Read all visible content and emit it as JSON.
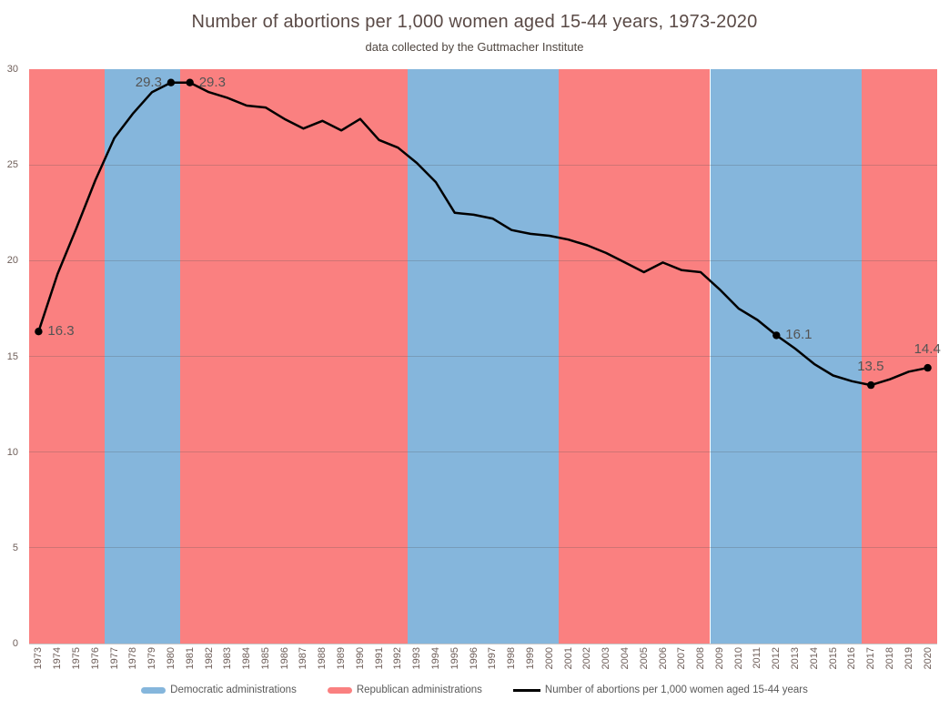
{
  "title": "Number of abortions per 1,000 women aged 15-44 years, 1973-2020",
  "subtitle": "data collected by the Guttmacher Institute",
  "legend": {
    "items": [
      {
        "label": "Democratic administrations",
        "swatch": "democratic"
      },
      {
        "label": "Republican administrations",
        "swatch": "republican"
      },
      {
        "label": "Number of abortions per 1,000 women aged 15-44 years",
        "swatch": "line"
      }
    ]
  },
  "colors": {
    "democratic_band": "#85b6dc",
    "republican_band": "#fa8080",
    "line": "#000000",
    "gridline": "rgba(80,80,80,0.25)",
    "axis_line": "#c6c6c6",
    "title_text": "#5a4a46",
    "subtitle_text": "#504741",
    "tick_text": "#6e5e59",
    "point_label_text": "#545454",
    "legend_text": "#595959"
  },
  "chart_data": {
    "type": "line",
    "title": "Number of abortions per 1,000 women aged 15-44 years, 1973-2020",
    "subtitle": "data collected by the Guttmacher Institute",
    "series_name": "Number of abortions per 1,000 women aged 15-44 years",
    "xlabel": "",
    "ylabel": "",
    "ylim": [
      0,
      30
    ],
    "yticks": [
      0,
      5,
      10,
      15,
      20,
      25,
      30
    ],
    "grid": true,
    "legend_position": "bottom",
    "x": [
      1973,
      1974,
      1975,
      1976,
      1977,
      1978,
      1979,
      1980,
      1981,
      1982,
      1983,
      1984,
      1985,
      1986,
      1987,
      1988,
      1989,
      1990,
      1991,
      1992,
      1993,
      1994,
      1995,
      1996,
      1997,
      1998,
      1999,
      2000,
      2001,
      2002,
      2003,
      2004,
      2005,
      2006,
      2007,
      2008,
      2009,
      2010,
      2011,
      2012,
      2013,
      2014,
      2015,
      2016,
      2017,
      2018,
      2019,
      2020
    ],
    "values": [
      16.3,
      19.3,
      21.7,
      24.2,
      26.4,
      27.7,
      28.8,
      29.3,
      29.3,
      28.8,
      28.5,
      28.1,
      28.0,
      27.4,
      26.9,
      27.3,
      26.8,
      27.4,
      26.3,
      25.9,
      25.1,
      24.1,
      22.5,
      22.4,
      22.2,
      21.6,
      21.4,
      21.3,
      21.1,
      20.8,
      20.4,
      19.9,
      19.4,
      19.9,
      19.5,
      19.4,
      18.5,
      17.5,
      16.9,
      16.1,
      15.4,
      14.6,
      14.0,
      13.7,
      13.5,
      13.8,
      14.2,
      14.4
    ],
    "labeled_points": [
      {
        "year": 1973,
        "label": "16.3",
        "placement": "right"
      },
      {
        "year": 1980,
        "label": "29.3",
        "placement": "left"
      },
      {
        "year": 1981,
        "label": "29.3",
        "placement": "right"
      },
      {
        "year": 2012,
        "label": "16.1",
        "placement": "right"
      },
      {
        "year": 2017,
        "label": "13.5",
        "placement": "above"
      },
      {
        "year": 2020,
        "label": "14.4",
        "placement": "above"
      }
    ],
    "bands": [
      {
        "party": "Republican",
        "from": 1973,
        "to": 1976
      },
      {
        "party": "Democratic",
        "from": 1977,
        "to": 1980
      },
      {
        "party": "Republican",
        "from": 1981,
        "to": 1992
      },
      {
        "party": "Democratic",
        "from": 1993,
        "to": 2000
      },
      {
        "party": "Republican",
        "from": 2001,
        "to": 2008
      },
      {
        "party": "Democratic",
        "from": 2009,
        "to": 2016
      },
      {
        "party": "Republican",
        "from": 2017,
        "to": 2020
      }
    ]
  }
}
